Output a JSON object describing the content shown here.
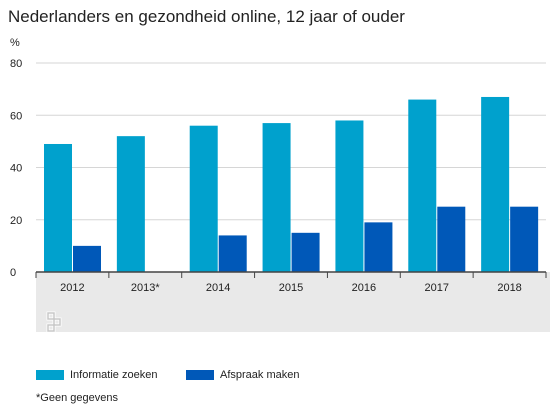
{
  "chart_data": {
    "type": "bar",
    "title": "Nederlanders en gezondheid online, 12 jaar of ouder",
    "unit": "%",
    "categories": [
      "2012",
      "2013*",
      "2014",
      "2015",
      "2016",
      "2017",
      "2018"
    ],
    "series": [
      {
        "name": "Informatie zoeken",
        "color": "#00a1cd",
        "values": [
          49,
          52,
          56,
          57,
          58,
          66,
          67
        ]
      },
      {
        "name": "Afspraak maken",
        "color": "#0058b8",
        "values": [
          10,
          null,
          14,
          15,
          19,
          25,
          25
        ]
      }
    ],
    "ylim": [
      0,
      80
    ],
    "yticks": [
      0,
      20,
      40,
      60,
      80
    ],
    "grid": true,
    "legend_position": "bottom",
    "footnote": "*Geen gegevens"
  }
}
